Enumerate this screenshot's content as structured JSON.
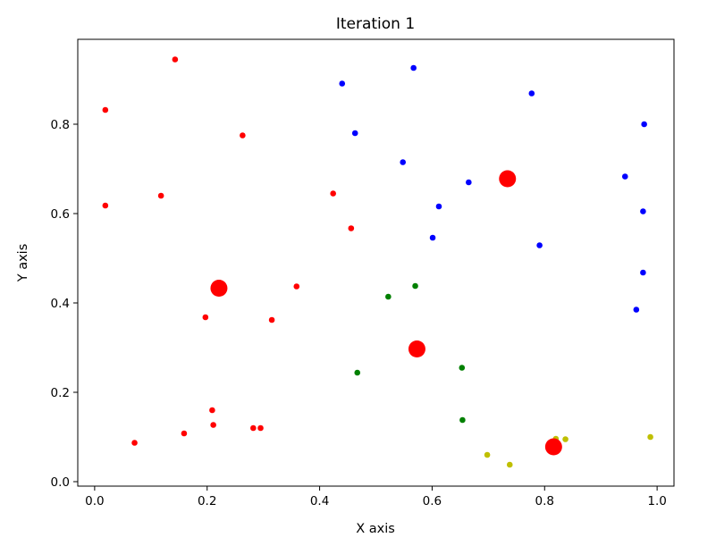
{
  "chart_data": {
    "type": "scatter",
    "title": "Iteration 1",
    "xlabel": "X axis",
    "ylabel": "Y axis",
    "xlim": [
      -0.03,
      1.03
    ],
    "ylim": [
      -0.01,
      0.99
    ],
    "xticks": [
      0.0,
      0.2,
      0.4,
      0.6,
      0.8,
      1.0
    ],
    "xtick_labels": [
      "0.0",
      "0.2",
      "0.4",
      "0.6",
      "0.8",
      "1.0"
    ],
    "yticks": [
      0.0,
      0.2,
      0.4,
      0.6,
      0.8
    ],
    "ytick_labels": [
      "0.0",
      "0.2",
      "0.4",
      "0.6",
      "0.8"
    ],
    "grid": false,
    "legend": "none",
    "series": [
      {
        "color": "#ff0000",
        "role": "points",
        "points": [
          [
            0.143,
            0.945
          ],
          [
            0.019,
            0.832
          ],
          [
            0.263,
            0.775
          ],
          [
            0.019,
            0.618
          ],
          [
            0.118,
            0.64
          ],
          [
            0.424,
            0.645
          ],
          [
            0.456,
            0.567
          ],
          [
            0.359,
            0.437
          ],
          [
            0.197,
            0.368
          ],
          [
            0.315,
            0.362
          ],
          [
            0.209,
            0.16
          ],
          [
            0.211,
            0.127
          ],
          [
            0.282,
            0.12
          ],
          [
            0.295,
            0.12
          ],
          [
            0.159,
            0.108
          ],
          [
            0.071,
            0.087
          ]
        ]
      },
      {
        "color": "#0000ff",
        "role": "points",
        "points": [
          [
            0.567,
            0.926
          ],
          [
            0.44,
            0.891
          ],
          [
            0.777,
            0.869
          ],
          [
            0.463,
            0.78
          ],
          [
            0.977,
            0.8
          ],
          [
            0.548,
            0.715
          ],
          [
            0.665,
            0.67
          ],
          [
            0.943,
            0.683
          ],
          [
            0.612,
            0.616
          ],
          [
            0.975,
            0.605
          ],
          [
            0.601,
            0.546
          ],
          [
            0.791,
            0.529
          ],
          [
            0.975,
            0.468
          ],
          [
            0.963,
            0.385
          ]
        ]
      },
      {
        "color": "#008000",
        "role": "points",
        "points": [
          [
            0.522,
            0.414
          ],
          [
            0.57,
            0.438
          ],
          [
            0.467,
            0.244
          ],
          [
            0.653,
            0.255
          ],
          [
            0.654,
            0.138
          ]
        ]
      },
      {
        "color": "#bfbf00",
        "role": "points",
        "points": [
          [
            0.698,
            0.06
          ],
          [
            0.738,
            0.038
          ],
          [
            0.82,
            0.096
          ],
          [
            0.837,
            0.095
          ],
          [
            0.988,
            0.1
          ]
        ]
      },
      {
        "color": "#ff0000",
        "role": "centroids",
        "points": [
          [
            0.734,
            0.678
          ],
          [
            0.221,
            0.433
          ],
          [
            0.573,
            0.297
          ],
          [
            0.816,
            0.078
          ]
        ]
      }
    ]
  }
}
